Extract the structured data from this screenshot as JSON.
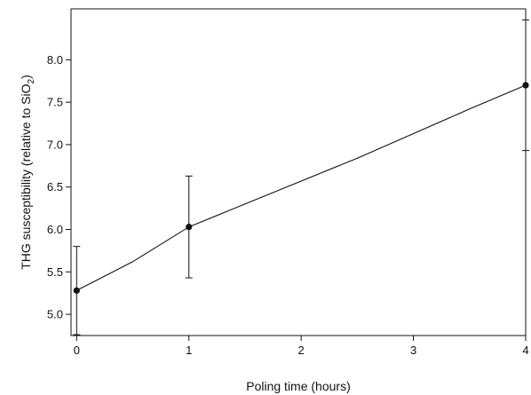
{
  "chart_data": {
    "type": "line",
    "title": "",
    "xlabel": "Poling time (hours)",
    "ylabel_main": "THG susceptibility (relative to SiO",
    "ylabel_sub": "2",
    "ylabel_close": ")",
    "x_ticks": [
      "0",
      "1",
      "2",
      "3",
      "4"
    ],
    "y_ticks": [
      "5.0",
      "5.5",
      "6.0",
      "6.5",
      "7.0",
      "7.5",
      "8.0"
    ],
    "xlim": [
      -0.05,
      4.0
    ],
    "ylim": [
      4.75,
      8.6
    ],
    "grid": false,
    "legend": "none",
    "series": [
      {
        "points": [
          {
            "x": 0,
            "y": 5.28,
            "err_low": 4.76,
            "err_high": 5.8
          },
          {
            "x": 1,
            "y": 6.03,
            "err_low": 5.43,
            "err_high": 6.63
          },
          {
            "x": 4,
            "y": 7.7,
            "err_low": 6.93,
            "err_high": 8.47
          }
        ],
        "curve": [
          [
            0,
            5.28
          ],
          [
            0.5,
            5.62
          ],
          [
            1,
            6.03
          ],
          [
            1.5,
            6.3
          ],
          [
            2,
            6.57
          ],
          [
            2.5,
            6.84
          ],
          [
            3,
            7.13
          ],
          [
            3.5,
            7.42
          ],
          [
            4,
            7.7
          ]
        ],
        "color": "#111111"
      }
    ]
  }
}
